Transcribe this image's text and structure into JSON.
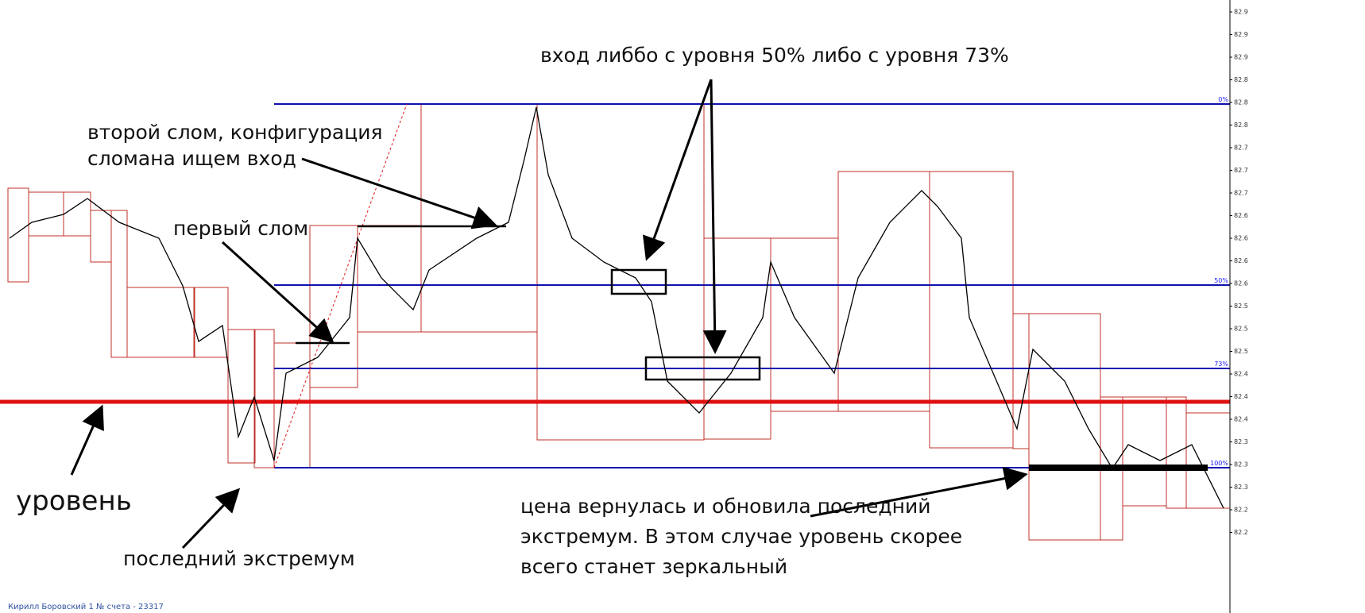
{
  "annotations": {
    "entry": "вход либбо с уровня 50% либо с уровня 73%",
    "second_break": [
      "второй слом, конфигурация",
      "сломана ищем вход"
    ],
    "first_break": "первый слом",
    "level": "уровень",
    "last_extreme": "последний экстремум",
    "returned": [
      "цена вернулась и обновила последний",
      "экстремум. В этом случае уровень скорее",
      "всего станет зеркальный"
    ]
  },
  "fib_labels": [
    "0%",
    "50%",
    "73%",
    "100%"
  ],
  "price_axis": [
    "82.9",
    "82.9",
    "82.9",
    "82.8",
    "82.8",
    "82.8",
    "82.7",
    "82.7",
    "82.7",
    "82.6",
    "82.6",
    "82.6",
    "82.6",
    "82.5",
    "82.5",
    "82.5",
    "82.4",
    "82.4",
    "82.4",
    "82.3",
    "82.3",
    "82.3",
    "82.2",
    "82.2"
  ],
  "footer": "Кирилл Боровский 1   № счета - 23317"
}
